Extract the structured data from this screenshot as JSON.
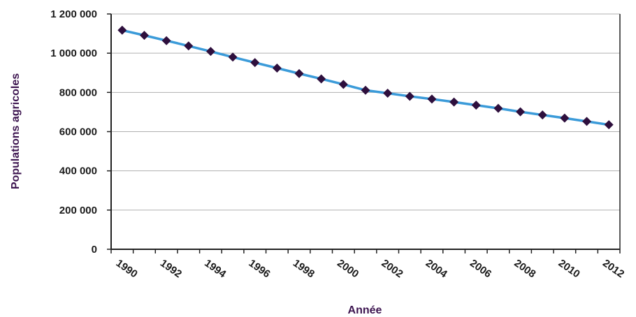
{
  "chart_data": {
    "type": "line",
    "title": "",
    "xlabel": "Année",
    "ylabel": "Populations agricoles",
    "x": [
      1990,
      1991,
      1992,
      1993,
      1994,
      1995,
      1996,
      1997,
      1998,
      1999,
      2000,
      2001,
      2002,
      2003,
      2004,
      2005,
      2006,
      2007,
      2008,
      2009,
      2010,
      2011,
      2012
    ],
    "x_tick_labels": [
      "1990",
      "1992",
      "1994",
      "1996",
      "1998",
      "2000",
      "2002",
      "2004",
      "2006",
      "2008",
      "2010",
      "2012"
    ],
    "y_tick_labels": [
      "0",
      "200 000",
      "400 000",
      "600 000",
      "800 000",
      "1 000 000",
      "1 200 000"
    ],
    "ylim": [
      0,
      1200000
    ],
    "grid": "horizontal",
    "legend": "none",
    "series": [
      {
        "values": [
          1117000,
          1091000,
          1064000,
          1037000,
          1009000,
          980000,
          952000,
          924000,
          896000,
          869000,
          841000,
          811000,
          796000,
          780000,
          766000,
          751000,
          735000,
          719000,
          701000,
          685000,
          669000,
          652000,
          635000
        ]
      }
    ],
    "colors": {
      "line": "#3b9bd9",
      "marker": "#2e0f3d",
      "axis_title": "#3d1550",
      "grid": "#b0b0b0",
      "axis": "#222222"
    }
  }
}
